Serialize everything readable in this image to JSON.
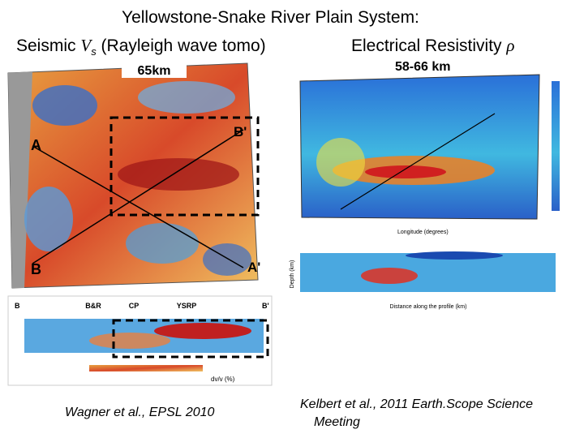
{
  "title": {
    "line1": "Yellowstone-Snake River Plain System:",
    "seismic": {
      "prefix": "Seismic",
      "symbol": "V",
      "subscript": "s",
      "suffix": "(Rayleigh wave tomo)"
    },
    "resistivity": {
      "text": "Electrical Resistivity",
      "symbol": "ρ"
    }
  },
  "left_panel": {
    "map_label": "65km",
    "points": [
      "A",
      "B'",
      "B",
      "A'"
    ],
    "section_labels": [
      "B&R",
      "CP",
      "YSRP"
    ],
    "section_ends": [
      "B",
      "B'"
    ],
    "colorbar_label": "dv/v (%)",
    "caption": "Wagner et al., EPSL 2010"
  },
  "right_panel": {
    "map_label": "58-66 km",
    "axis_label": "Longitude (degrees)",
    "section_axis": "Distance along the profile (km)",
    "section_y_label": "Depth (km)",
    "caption": [
      "Kelbert et al., 2011 Earth.Scope Science",
      "Meeting"
    ]
  }
}
